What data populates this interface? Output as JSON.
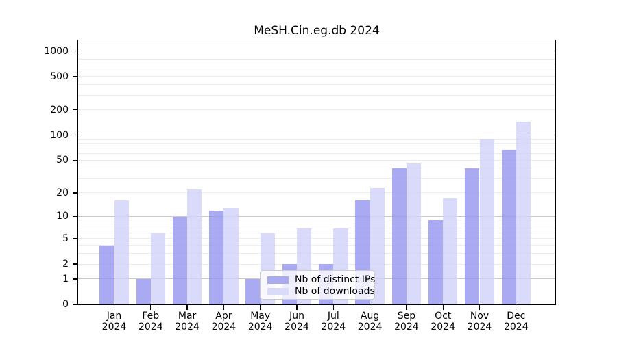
{
  "title": "MeSH.Cin.eg.db 2024",
  "chart_data": {
    "type": "bar",
    "title": "MeSH.Cin.eg.db 2024",
    "categories": [
      "Jan 2024",
      "Feb 2024",
      "Mar 2024",
      "Apr 2024",
      "May 2024",
      "Jun 2024",
      "Jul 2024",
      "Aug 2024",
      "Sep 2024",
      "Oct 2024",
      "Nov 2024",
      "Dec 2024"
    ],
    "series": [
      {
        "name": "Nb of distinct IPs",
        "color": "#aaaaee",
        "fill": "rgba(149,149,239,0.8)",
        "values": [
          4,
          1,
          10,
          12,
          1,
          2,
          2,
          16,
          40,
          9,
          40,
          67
        ]
      },
      {
        "name": "Nb of downloads",
        "color": "#dadaf9",
        "fill": "rgba(209,209,249,0.8)",
        "values": [
          16,
          6,
          22,
          13,
          6,
          7,
          7,
          23,
          46,
          17,
          90,
          145
        ]
      }
    ],
    "xlabel": "",
    "ylabel": "",
    "y_scale": "log10(1+x)",
    "y_ticks": [
      0,
      1,
      2,
      5,
      10,
      20,
      50,
      100,
      200,
      500,
      1000
    ],
    "y_major_gridlines": [
      1,
      10,
      100,
      1000
    ],
    "y_max": 1342,
    "grid": true,
    "legend_position": "inside-bottom-center"
  },
  "colors": {
    "axis": "#000000",
    "grid_minor": "#ebebeb",
    "grid_major": "#c9c9c9",
    "legend_border": "#cccccc",
    "background": "#ffffff"
  }
}
